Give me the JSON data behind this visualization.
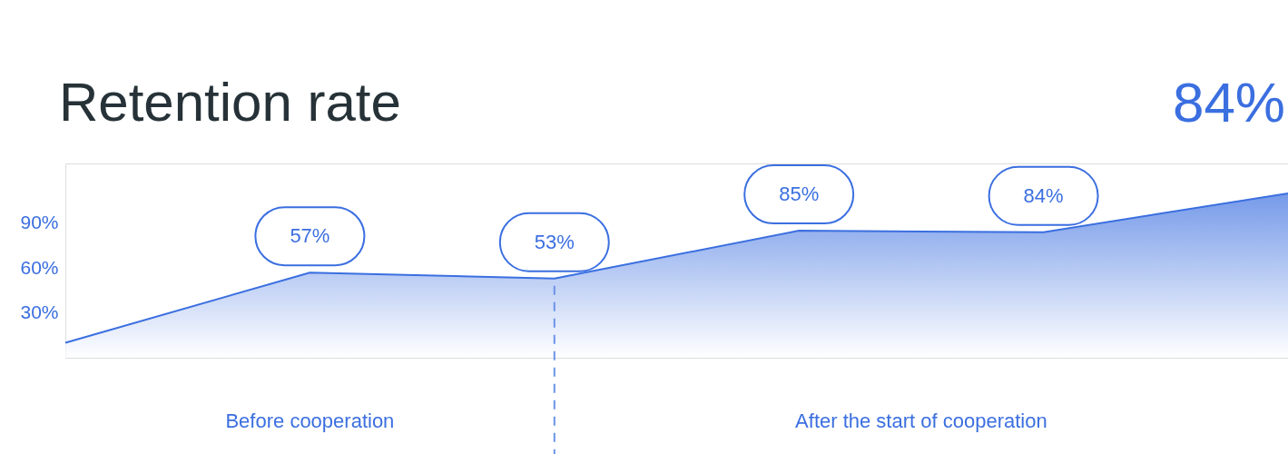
{
  "chart_data": {
    "type": "area",
    "title": "Retention rate",
    "categories": [
      null,
      null,
      null,
      null,
      null,
      null
    ],
    "values": [
      10,
      57,
      53,
      85,
      84,
      110
    ],
    "value_labels": [
      null,
      "57%",
      "53%",
      "85%",
      "84%",
      null
    ],
    "color": "#3b6fe0",
    "ylim": [
      0,
      130
    ],
    "yticks": [
      {
        "value": 30,
        "label": "30%"
      },
      {
        "value": 60,
        "label": "60%"
      },
      {
        "value": 90,
        "label": "90%"
      }
    ],
    "tick_labels": "y",
    "grid": false,
    "annotations": [
      "84%",
      "Before cooperation",
      "After the start of cooperation"
    ]
  }
}
